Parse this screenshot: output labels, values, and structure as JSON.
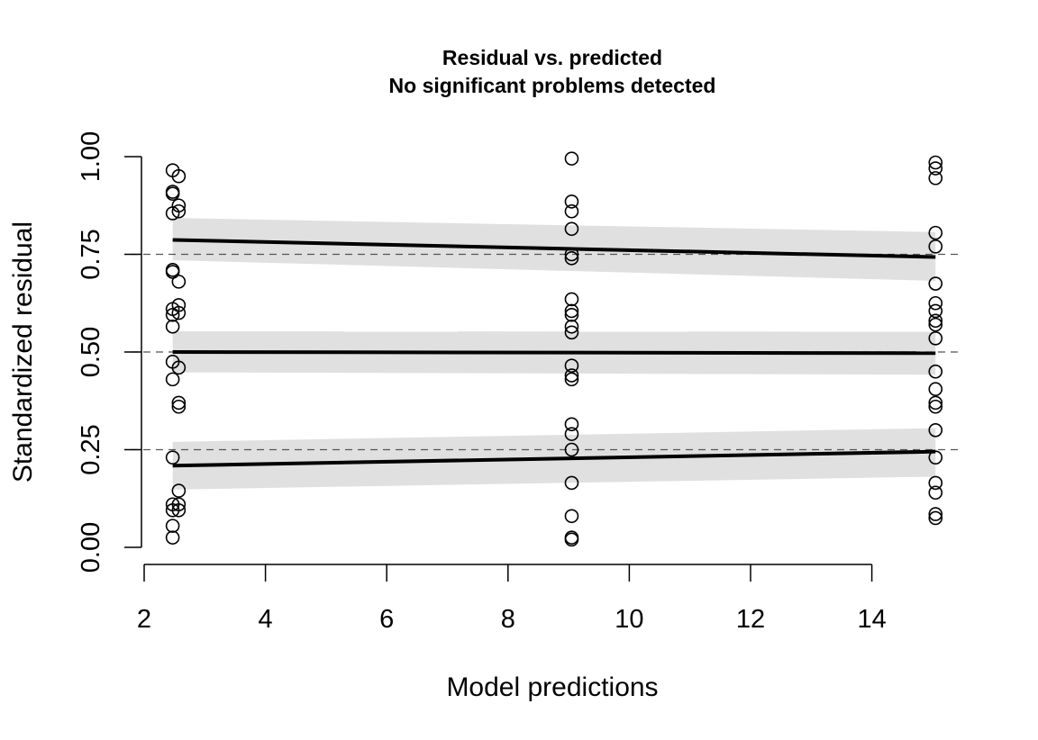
{
  "chart_data": {
    "type": "scatter",
    "title": "Residual vs. predicted",
    "subtitle": "No significant problems detected",
    "xlabel": "Model predictions",
    "ylabel": "Standardized residual",
    "xlim": [
      2,
      15.2
    ],
    "ylim": [
      0,
      1
    ],
    "x_ticks": [
      2,
      4,
      6,
      8,
      10,
      12,
      14
    ],
    "y_ticks": [
      0.0,
      0.25,
      0.5,
      0.75,
      1.0
    ],
    "x_tick_labels": [
      "2",
      "4",
      "6",
      "8",
      "10",
      "12",
      "14"
    ],
    "y_tick_labels": [
      "0.00",
      "0.25",
      "0.50",
      "0.75",
      "1.00"
    ],
    "reference_lines": [
      0.25,
      0.5,
      0.75
    ],
    "grid": false,
    "points": [
      [
        2.47,
        0.965
      ],
      [
        2.47,
        0.91
      ],
      [
        2.47,
        0.905
      ],
      [
        2.47,
        0.855
      ],
      [
        2.47,
        0.71
      ],
      [
        2.47,
        0.705
      ],
      [
        2.47,
        0.61
      ],
      [
        2.47,
        0.595
      ],
      [
        2.47,
        0.565
      ],
      [
        2.47,
        0.475
      ],
      [
        2.47,
        0.43
      ],
      [
        2.47,
        0.23
      ],
      [
        2.47,
        0.11
      ],
      [
        2.47,
        0.095
      ],
      [
        2.47,
        0.055
      ],
      [
        2.47,
        0.025
      ],
      [
        2.57,
        0.95
      ],
      [
        2.57,
        0.875
      ],
      [
        2.57,
        0.86
      ],
      [
        2.57,
        0.68
      ],
      [
        2.57,
        0.62
      ],
      [
        2.57,
        0.6
      ],
      [
        2.57,
        0.46
      ],
      [
        2.57,
        0.37
      ],
      [
        2.57,
        0.36
      ],
      [
        2.57,
        0.145
      ],
      [
        2.57,
        0.11
      ],
      [
        2.57,
        0.095
      ],
      [
        9.05,
        0.995
      ],
      [
        9.05,
        0.885
      ],
      [
        9.05,
        0.86
      ],
      [
        9.05,
        0.815
      ],
      [
        9.05,
        0.75
      ],
      [
        9.05,
        0.74
      ],
      [
        9.05,
        0.635
      ],
      [
        9.05,
        0.605
      ],
      [
        9.05,
        0.595
      ],
      [
        9.05,
        0.565
      ],
      [
        9.05,
        0.55
      ],
      [
        9.05,
        0.465
      ],
      [
        9.05,
        0.44
      ],
      [
        9.05,
        0.43
      ],
      [
        9.05,
        0.315
      ],
      [
        9.05,
        0.29
      ],
      [
        9.05,
        0.25
      ],
      [
        9.05,
        0.165
      ],
      [
        9.05,
        0.08
      ],
      [
        9.05,
        0.025
      ],
      [
        9.05,
        0.02
      ],
      [
        15.05,
        0.985
      ],
      [
        15.05,
        0.97
      ],
      [
        15.05,
        0.945
      ],
      [
        15.05,
        0.805
      ],
      [
        15.05,
        0.77
      ],
      [
        15.05,
        0.675
      ],
      [
        15.05,
        0.625
      ],
      [
        15.05,
        0.605
      ],
      [
        15.05,
        0.58
      ],
      [
        15.05,
        0.57
      ],
      [
        15.05,
        0.535
      ],
      [
        15.05,
        0.45
      ],
      [
        15.05,
        0.405
      ],
      [
        15.05,
        0.37
      ],
      [
        15.05,
        0.36
      ],
      [
        15.05,
        0.3
      ],
      [
        15.05,
        0.23
      ],
      [
        15.05,
        0.165
      ],
      [
        15.05,
        0.14
      ],
      [
        15.05,
        0.085
      ],
      [
        15.05,
        0.075
      ]
    ],
    "quantile_lines": [
      {
        "quantile": 0.75,
        "x": [
          2.47,
          15.05
        ],
        "y": [
          0.787,
          0.743
        ],
        "band_upper": [
          0.843,
          0.807
        ],
        "band_lower": [
          0.735,
          0.682
        ]
      },
      {
        "quantile": 0.5,
        "x": [
          2.47,
          15.05
        ],
        "y": [
          0.5,
          0.497
        ],
        "band_upper": [
          0.553,
          0.552
        ],
        "band_lower": [
          0.448,
          0.442
        ]
      },
      {
        "quantile": 0.25,
        "x": [
          2.47,
          15.05
        ],
        "y": [
          0.209,
          0.245
        ],
        "band_upper": [
          0.27,
          0.305
        ],
        "band_lower": [
          0.148,
          0.181
        ]
      }
    ],
    "colors": {
      "band": "#e0e0e0",
      "line": "#000000",
      "reference": "#555555",
      "point": "#000000"
    }
  }
}
